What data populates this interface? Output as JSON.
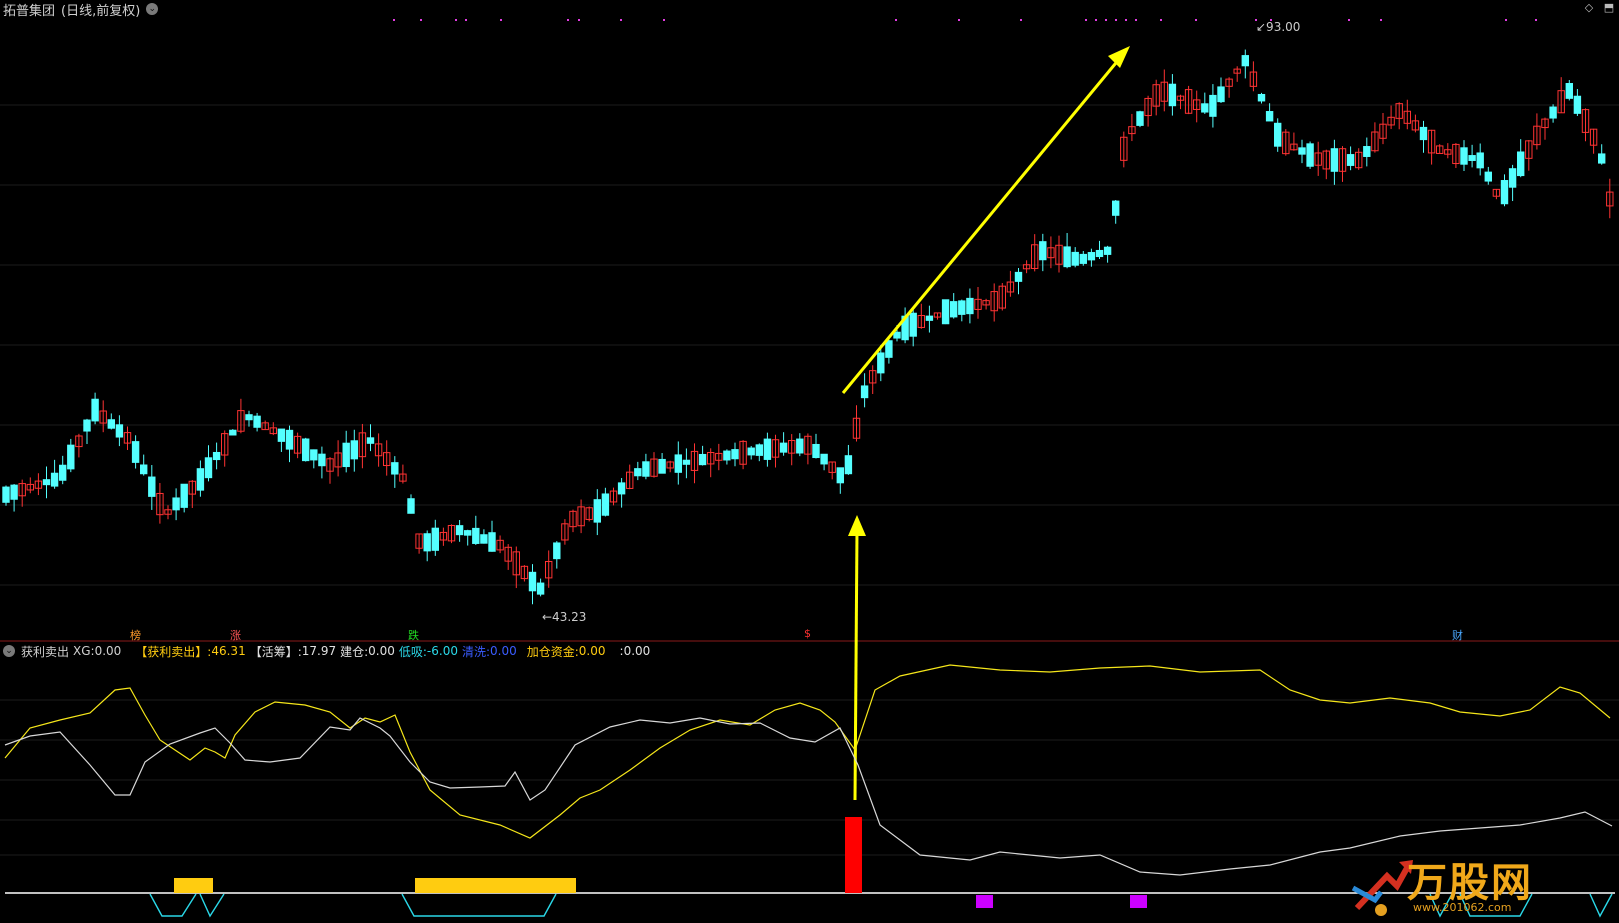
{
  "window": {
    "title": "拓普集团",
    "period": "(日线,前复权)",
    "dropdown_icon": "chevron-down-icon",
    "corner_icons": [
      "diamond-icon",
      "collapse-icon"
    ]
  },
  "price_chart": {
    "high_label": "93.00",
    "low_label": "43.23",
    "y_range": [
      38,
      97
    ]
  },
  "event_markers": [
    {
      "text": "榜",
      "color": "#ff9a2a"
    },
    {
      "text": "涨",
      "color": "#ff5555"
    },
    {
      "text": "跌",
      "color": "#22dd22"
    },
    {
      "text": "$",
      "color": "#ff3030"
    },
    {
      "text": "财",
      "color": "#4aa8ff"
    }
  ],
  "indicator": {
    "name": "获利卖出",
    "xg_label": "XG:",
    "xg_value": "0.00",
    "profit_label": "【获利卖出】:",
    "profit_value": "46.31",
    "active_label": "【活筹】:",
    "active_value": "17.97",
    "build_label": "建仓:",
    "build_value": "0.00",
    "low_label": "低吸:",
    "low_value": "-6.00",
    "clear_label": "清洗:",
    "clear_value": "0.00",
    "add_label": "加仓资金:",
    "add_value": "0.00",
    "blank_label": ":",
    "blank_value": "0.00"
  },
  "colors": {
    "bull": "#ff3333",
    "bear": "#54ffff",
    "yellow_line": "#f5e61a",
    "white_line": "#d8d8d8",
    "arrow": "#ffff00",
    "orange_bar": "#ffcc10",
    "red_bar": "#ff0000",
    "purple_bar": "#cc00ff",
    "cyan_shape": "#2ad8e8",
    "magenta_dot": "#e23ce2"
  },
  "logo": {
    "text": "万股网",
    "url": "www.201062.com",
    "icon": "stock-arrow-logo-icon"
  }
}
